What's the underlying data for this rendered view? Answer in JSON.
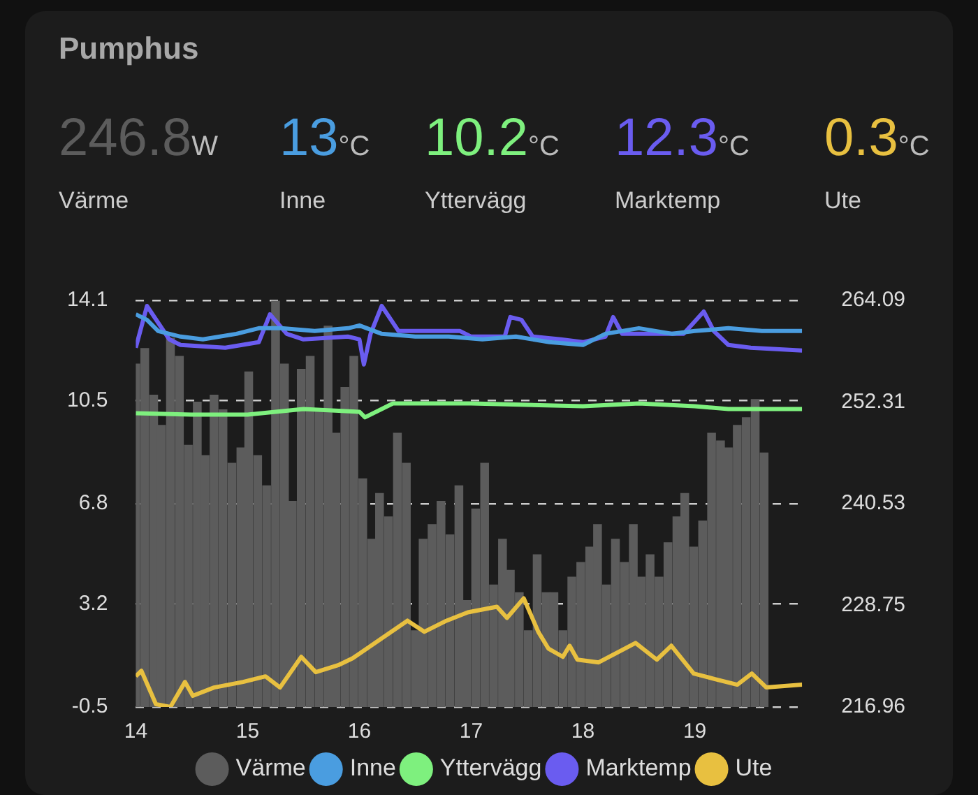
{
  "chart_data": {
    "type": "line",
    "title": "Pumphus",
    "annotations": [
      "246.8W",
      "13°C",
      "10.2°C",
      "12.3°C",
      "0.3°C"
    ],
    "xlim": [
      14,
      19.96
    ],
    "xticks": [
      14,
      15,
      16,
      17,
      18,
      19
    ],
    "ylim": [
      -0.5,
      14.1
    ],
    "yticks": [
      -0.5,
      3.2,
      6.8,
      10.5,
      14.1
    ],
    "y2lim": [
      216.96,
      264.09
    ],
    "y2ticks": [
      216.96,
      228.75,
      240.53,
      252.31,
      264.09
    ],
    "grid": "y",
    "legend": "bottom",
    "marker": "none",
    "series": [
      {
        "name": "Värme",
        "type": "bar",
        "axis": "y2",
        "color": "#5c5c5c",
        "x": [
          14.0,
          14.08,
          14.16,
          14.23,
          14.31,
          14.39,
          14.47,
          14.55,
          14.62,
          14.7,
          14.78,
          14.86,
          14.94,
          15.01,
          15.09,
          15.17,
          15.25,
          15.33,
          15.4,
          15.48,
          15.56,
          15.64,
          15.72,
          15.79,
          15.87,
          15.95,
          16.03,
          16.11,
          16.18,
          16.26,
          16.34,
          16.42,
          16.5,
          16.57,
          16.65,
          16.73,
          16.81,
          16.89,
          16.96,
          17.04,
          17.12,
          17.2,
          17.28,
          17.35,
          17.43,
          17.51,
          17.59,
          17.67,
          17.74,
          17.82,
          17.9,
          17.98,
          18.06,
          18.13,
          18.21,
          18.29,
          18.37,
          18.45,
          18.52,
          18.6,
          18.68,
          18.76,
          18.84,
          18.91,
          18.99,
          19.07,
          19.15,
          19.23,
          19.3,
          19.38,
          19.46,
          19.54,
          19.62
        ],
        "values": [
          256.7,
          258.5,
          253.1,
          249.6,
          259.7,
          257.6,
          247.3,
          252.3,
          246.1,
          253.1,
          251.4,
          245.2,
          247.0,
          255.8,
          246.1,
          242.6,
          264.0,
          256.7,
          240.8,
          256.1,
          257.6,
          251.4,
          261.1,
          248.7,
          254.0,
          257.6,
          243.4,
          236.4,
          241.7,
          239.0,
          248.7,
          245.2,
          225.8,
          236.4,
          238.1,
          240.8,
          236.9,
          242.6,
          229.3,
          239.9,
          245.2,
          231.1,
          236.4,
          232.8,
          230.2,
          225.8,
          234.6,
          230.2,
          230.2,
          225.8,
          232.0,
          233.7,
          235.5,
          238.1,
          231.1,
          236.4,
          233.7,
          238.1,
          232.0,
          234.6,
          232.0,
          236.0,
          239.0,
          241.7,
          235.5,
          238.5,
          248.7,
          247.8,
          247.0,
          249.6,
          250.5,
          252.6,
          246.4
        ]
      },
      {
        "name": "Inne",
        "color": "#4a9de0",
        "x": [
          14.0,
          14.1,
          14.2,
          14.4,
          14.6,
          14.9,
          15.1,
          15.3,
          15.6,
          15.9,
          16.0,
          16.2,
          16.5,
          16.8,
          17.1,
          17.4,
          17.7,
          18.0,
          18.2,
          18.5,
          18.8,
          19.0,
          19.3,
          19.6,
          19.96
        ],
        "values": [
          13.6,
          13.4,
          13.0,
          12.8,
          12.7,
          12.9,
          13.1,
          13.1,
          13.0,
          13.1,
          13.2,
          12.9,
          12.8,
          12.8,
          12.7,
          12.8,
          12.6,
          12.5,
          12.9,
          13.1,
          12.9,
          13.0,
          13.1,
          13.0,
          13.0
        ]
      },
      {
        "name": "Yttervägg",
        "color": "#7ef07e",
        "x": [
          14.0,
          14.5,
          15.0,
          15.5,
          16.0,
          16.05,
          16.3,
          17.0,
          17.5,
          18.0,
          18.5,
          19.0,
          19.3,
          19.6,
          19.96
        ],
        "values": [
          10.05,
          10.0,
          10.0,
          10.2,
          10.1,
          9.9,
          10.4,
          10.4,
          10.35,
          10.3,
          10.4,
          10.3,
          10.2,
          10.2,
          10.2
        ]
      },
      {
        "name": "Marktemp",
        "color": "#6a5cf0",
        "x": [
          14.0,
          14.1,
          14.3,
          14.4,
          14.8,
          15.1,
          15.2,
          15.35,
          15.5,
          15.9,
          16.0,
          16.04,
          16.1,
          16.2,
          16.35,
          16.9,
          17.0,
          17.3,
          17.35,
          17.45,
          17.55,
          17.8,
          18.0,
          18.2,
          18.27,
          18.35,
          18.6,
          18.9,
          19.08,
          19.17,
          19.3,
          19.5,
          19.96
        ],
        "values": [
          12.4,
          13.9,
          12.7,
          12.5,
          12.4,
          12.6,
          13.6,
          12.9,
          12.7,
          12.8,
          12.7,
          11.8,
          12.9,
          13.9,
          13.0,
          13.0,
          12.8,
          12.8,
          13.5,
          13.4,
          12.8,
          12.7,
          12.6,
          12.8,
          13.5,
          12.9,
          12.9,
          12.9,
          13.7,
          13.0,
          12.5,
          12.4,
          12.3
        ]
      },
      {
        "name": "Ute",
        "color": "#e8c040",
        "x": [
          14.0,
          14.05,
          14.18,
          14.31,
          14.44,
          14.51,
          14.7,
          14.96,
          15.16,
          15.29,
          15.48,
          15.61,
          15.81,
          15.94,
          16.43,
          16.58,
          16.78,
          16.97,
          17.23,
          17.32,
          17.47,
          17.6,
          17.69,
          17.82,
          17.88,
          17.95,
          18.14,
          18.47,
          18.66,
          18.79,
          18.99,
          19.18,
          19.38,
          19.51,
          19.64,
          19.96
        ],
        "values": [
          0.6,
          0.8,
          -0.4,
          -0.5,
          0.4,
          -0.1,
          0.2,
          0.4,
          0.6,
          0.2,
          1.3,
          0.75,
          1.0,
          1.25,
          2.6,
          2.2,
          2.6,
          2.9,
          3.1,
          2.7,
          3.4,
          2.2,
          1.6,
          1.3,
          1.7,
          1.2,
          1.1,
          1.8,
          1.2,
          1.7,
          0.7,
          0.5,
          0.3,
          0.7,
          0.2,
          0.3
        ]
      }
    ]
  }
}
